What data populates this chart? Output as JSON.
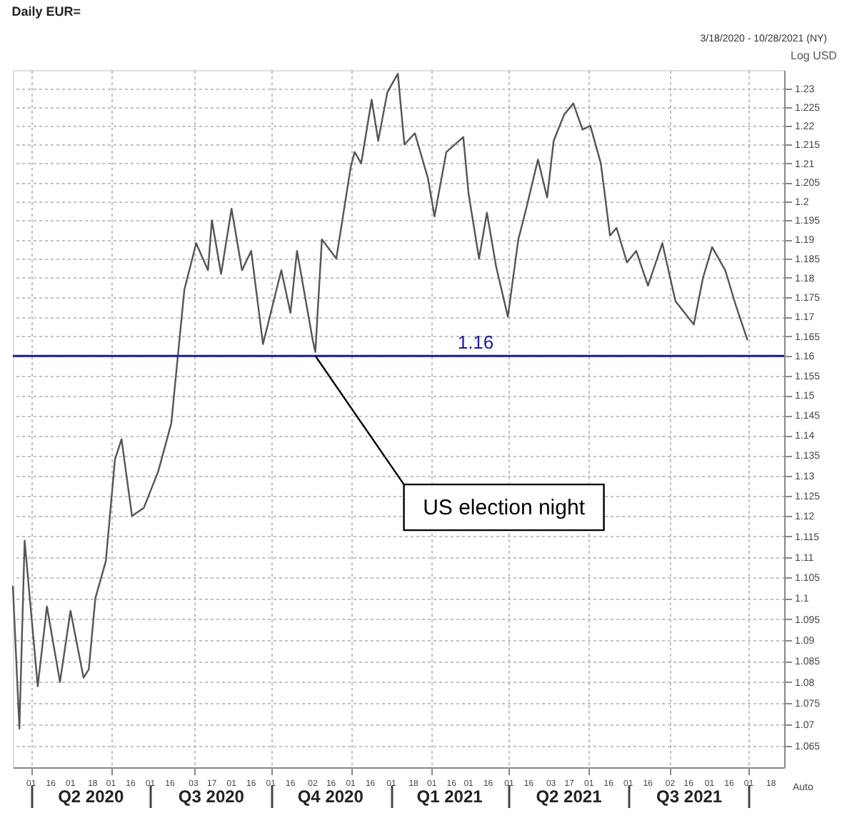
{
  "chart_data": {
    "type": "line",
    "title": "Daily EUR=",
    "subtitle": "3/18/2020 - 10/28/2021 (NY)",
    "ylabel": "Log USD",
    "x": [
      "2020-03-18",
      "2020-03-23",
      "2020-03-27",
      "2020-04-06",
      "2020-04-13",
      "2020-04-23",
      "2020-05-01",
      "2020-05-11",
      "2020-05-15",
      "2020-05-20",
      "2020-05-28",
      "2020-06-04",
      "2020-06-09",
      "2020-06-17",
      "2020-06-26",
      "2020-07-07",
      "2020-07-17",
      "2020-07-22",
      "2020-07-27",
      "2020-08-05",
      "2020-08-14",
      "2020-08-17",
      "2020-08-24",
      "2020-09-01",
      "2020-09-09",
      "2020-09-16",
      "2020-09-25",
      "2020-10-09",
      "2020-10-16",
      "2020-10-21",
      "2020-11-02",
      "2020-11-04",
      "2020-11-09",
      "2020-11-20",
      "2020-12-01",
      "2020-12-04",
      "2020-12-09",
      "2020-12-17",
      "2020-12-22",
      "2020-12-29",
      "2021-01-06",
      "2021-01-11",
      "2021-01-19",
      "2021-01-29",
      "2021-02-03",
      "2021-02-12",
      "2021-02-25",
      "2021-03-01",
      "2021-03-09",
      "2021-03-15",
      "2021-03-22",
      "2021-03-31",
      "2021-04-08",
      "2021-04-14",
      "2021-04-23",
      "2021-04-30",
      "2021-05-05",
      "2021-05-13",
      "2021-05-20",
      "2021-05-27",
      "2021-06-02",
      "2021-06-10",
      "2021-06-17",
      "2021-06-22",
      "2021-06-30",
      "2021-07-07",
      "2021-07-16",
      "2021-07-27",
      "2021-08-06",
      "2021-08-20",
      "2021-08-27",
      "2021-09-03",
      "2021-09-13",
      "2021-09-21",
      "2021-09-30"
    ],
    "series": [
      {
        "color": "#555555",
        "values": [
          1.103,
          1.069,
          1.114,
          1.079,
          1.098,
          1.08,
          1.097,
          1.081,
          1.083,
          1.1,
          1.109,
          1.134,
          1.139,
          1.12,
          1.122,
          1.131,
          1.143,
          1.16,
          1.177,
          1.189,
          1.182,
          1.195,
          1.181,
          1.198,
          1.182,
          1.187,
          1.163,
          1.182,
          1.171,
          1.187,
          1.164,
          1.161,
          1.19,
          1.185,
          1.209,
          1.213,
          1.21,
          1.227,
          1.216,
          1.229,
          1.234,
          1.215,
          1.218,
          1.206,
          1.196,
          1.213,
          1.217,
          1.202,
          1.185,
          1.197,
          1.183,
          1.17,
          1.19,
          1.198,
          1.211,
          1.201,
          1.216,
          1.223,
          1.226,
          1.219,
          1.22,
          1.21,
          1.191,
          1.193,
          1.184,
          1.187,
          1.178,
          1.189,
          1.174,
          1.168,
          1.18,
          1.188,
          1.182,
          1.173,
          1.164
        ]
      }
    ],
    "xlim": [
      "2020-03-18",
      "2021-10-28"
    ],
    "xticks": [
      {
        "value": "2020-04-01",
        "label": "01"
      },
      {
        "value": "2020-04-16",
        "label": "16"
      },
      {
        "value": "2020-05-01",
        "label": "01"
      },
      {
        "value": "2020-05-18",
        "label": "18"
      },
      {
        "value": "2020-06-01",
        "label": "01"
      },
      {
        "value": "2020-06-16",
        "label": "16"
      },
      {
        "value": "2020-07-01",
        "label": "01"
      },
      {
        "value": "2020-07-16",
        "label": "16"
      },
      {
        "value": "2020-08-03",
        "label": "03"
      },
      {
        "value": "2020-08-17",
        "label": "17"
      },
      {
        "value": "2020-09-01",
        "label": "01"
      },
      {
        "value": "2020-09-16",
        "label": "16"
      },
      {
        "value": "2020-10-01",
        "label": "01"
      },
      {
        "value": "2020-10-16",
        "label": "16"
      },
      {
        "value": "2020-11-02",
        "label": "02"
      },
      {
        "value": "2020-11-16",
        "label": "16"
      },
      {
        "value": "2020-12-01",
        "label": "01"
      },
      {
        "value": "2020-12-16",
        "label": "16"
      },
      {
        "value": "2021-01-01",
        "label": "01"
      },
      {
        "value": "2021-01-18",
        "label": "18"
      },
      {
        "value": "2021-02-01",
        "label": "01"
      },
      {
        "value": "2021-02-16",
        "label": "16"
      },
      {
        "value": "2021-03-01",
        "label": "01"
      },
      {
        "value": "2021-03-16",
        "label": "16"
      },
      {
        "value": "2021-04-01",
        "label": "01"
      },
      {
        "value": "2021-04-16",
        "label": "16"
      },
      {
        "value": "2021-05-03",
        "label": "03"
      },
      {
        "value": "2021-05-17",
        "label": "17"
      },
      {
        "value": "2021-06-01",
        "label": "01"
      },
      {
        "value": "2021-06-16",
        "label": "16"
      },
      {
        "value": "2021-07-01",
        "label": "01"
      },
      {
        "value": "2021-07-16",
        "label": "16"
      },
      {
        "value": "2021-08-02",
        "label": "02"
      },
      {
        "value": "2021-08-16",
        "label": "16"
      },
      {
        "value": "2021-09-01",
        "label": "01"
      },
      {
        "value": "2021-09-16",
        "label": "16"
      },
      {
        "value": "2021-10-01",
        "label": "01"
      },
      {
        "value": "2021-10-18",
        "label": "18"
      }
    ],
    "ylim": [
      1.06,
      1.235
    ],
    "log": true,
    "yticks": [
      1.065,
      1.07,
      1.075,
      1.08,
      1.085,
      1.09,
      1.095,
      1.1,
      1.105,
      1.11,
      1.115,
      1.12,
      1.125,
      1.13,
      1.135,
      1.14,
      1.145,
      1.15,
      1.155,
      1.16,
      1.165,
      1.17,
      1.175,
      1.18,
      1.185,
      1.19,
      1.195,
      1.2,
      1.205,
      1.21,
      1.215,
      1.22,
      1.225,
      1.23
    ],
    "x2lim": [
      "2020-03-18",
      "2021-10-28"
    ],
    "x2ticks": [
      {
        "value": "2020-04-01",
        "label": null
      },
      {
        "value": "2020-05-16",
        "label": "Q2 2020"
      },
      {
        "value": "2020-07-01",
        "label": null
      },
      {
        "value": "2020-08-16",
        "label": "Q3 2020"
      },
      {
        "value": "2020-10-01",
        "label": null
      },
      {
        "value": "2020-11-15",
        "label": "Q4 2020"
      },
      {
        "value": "2021-01-01",
        "label": null
      },
      {
        "value": "2021-02-14",
        "label": "Q1 2021"
      },
      {
        "value": "2021-04-01",
        "label": null
      },
      {
        "value": "2021-05-16",
        "label": "Q2 2021"
      },
      {
        "value": "2021-07-01",
        "label": null
      },
      {
        "value": "2021-08-16",
        "label": "Q3 2021"
      },
      {
        "value": "2021-10-01",
        "label": null
      }
    ],
    "grid": true,
    "marker": "none",
    "line_style": "solid",
    "ref_lines": [
      {
        "axis": "y",
        "value": 1.16,
        "label": "1.16",
        "color": "#1a1aa6"
      }
    ],
    "annotations": [
      {
        "text": "US election night",
        "x": "2020-11-04",
        "y": 1.16
      },
      "Auto"
    ]
  }
}
